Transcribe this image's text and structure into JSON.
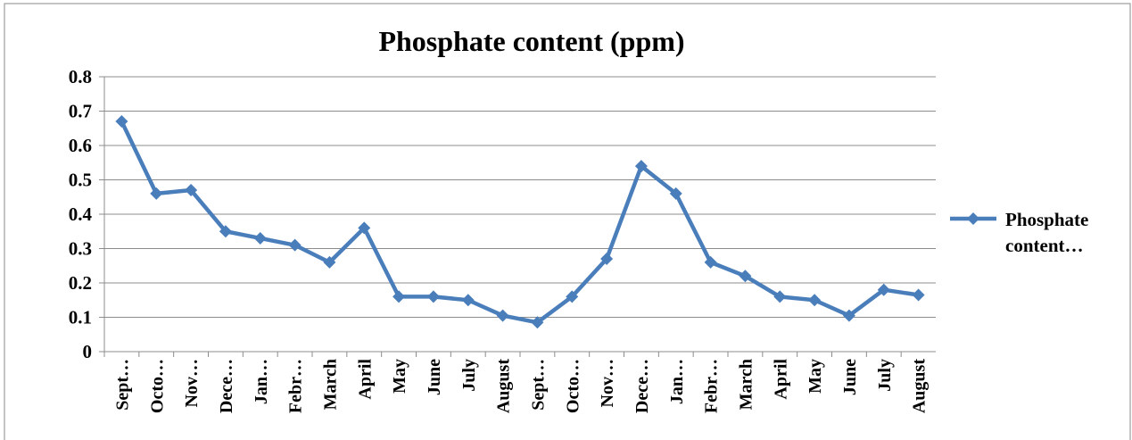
{
  "chart_data": {
    "type": "line",
    "title": "Phosphate content (ppm)",
    "categories": [
      "Sept…",
      "Octo…",
      "Nov…",
      "Dece…",
      "Jan…",
      "Febr…",
      "March",
      "April",
      "May",
      "June",
      "July",
      "August",
      "Sept…",
      "Octo…",
      "Nov…",
      "Dece…",
      "Jan…",
      "Febr…",
      "March",
      "April",
      "May",
      "June",
      "July",
      "August"
    ],
    "series": [
      {
        "name": "Phosphate content…",
        "color": "#4a7ebb",
        "values": [
          0.67,
          0.46,
          0.47,
          0.35,
          0.33,
          0.31,
          0.26,
          0.36,
          0.16,
          0.16,
          0.15,
          0.105,
          0.085,
          0.16,
          0.27,
          0.54,
          0.46,
          0.26,
          0.22,
          0.16,
          0.15,
          0.105,
          0.18,
          0.165
        ]
      }
    ],
    "ylim": [
      0,
      0.8
    ],
    "yticks": [
      0,
      0.1,
      0.2,
      0.3,
      0.4,
      0.5,
      0.6,
      0.7,
      0.8
    ],
    "grid": true,
    "legend": "right"
  }
}
